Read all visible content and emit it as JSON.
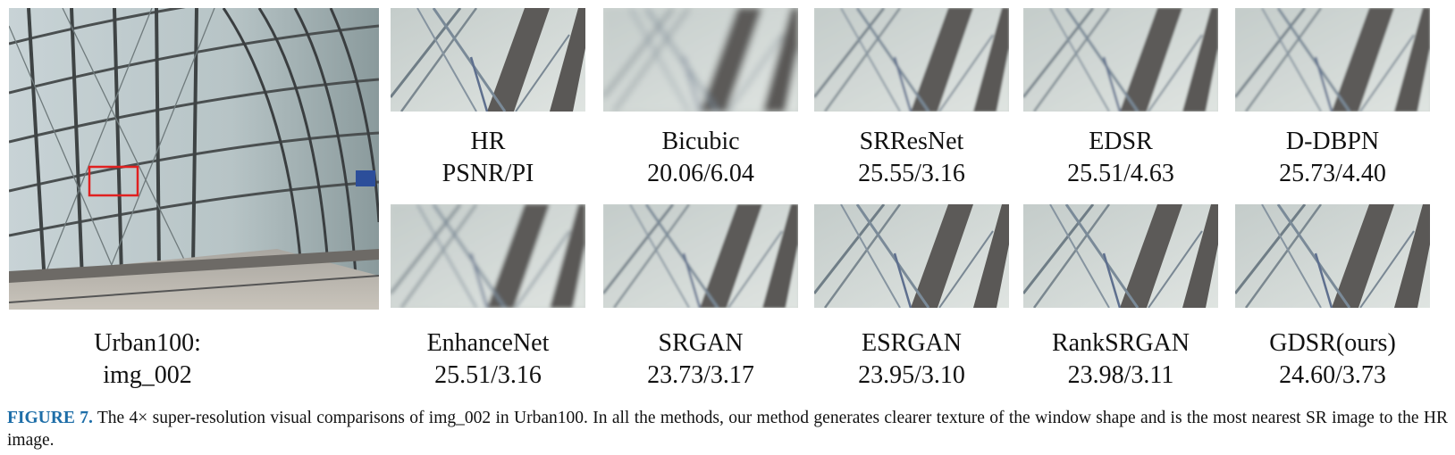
{
  "source": {
    "line1": "Urban100:",
    "line2": "img_002"
  },
  "top_row": [
    {
      "name": "HR",
      "score": "PSNR/PI"
    },
    {
      "name": "Bicubic",
      "score": "20.06/6.04"
    },
    {
      "name": "SRResNet",
      "score": "25.55/3.16"
    },
    {
      "name": "EDSR",
      "score": "25.51/4.63"
    },
    {
      "name": "D-DBPN",
      "score": "25.73/4.40"
    }
  ],
  "bottom_row": [
    {
      "name": "EnhanceNet",
      "score": "25.51/3.16"
    },
    {
      "name": "SRGAN",
      "score": "23.73/3.17"
    },
    {
      "name": "ESRGAN",
      "score": "23.95/3.10"
    },
    {
      "name": "RankSRGAN",
      "score": "23.98/3.11"
    },
    {
      "name": "GDSR(ours)",
      "score": "24.60/3.73"
    }
  ],
  "caption": {
    "label": "FIGURE 7.",
    "text": "The 4× super-resolution visual comparisons of img_002 in Urban100. In all the methods, our method generates clearer texture of the window shape and is the most nearest SR image to the HR image."
  },
  "colors": {
    "highlight_box": "#e02020",
    "figure_label": "#1e6ea8"
  }
}
